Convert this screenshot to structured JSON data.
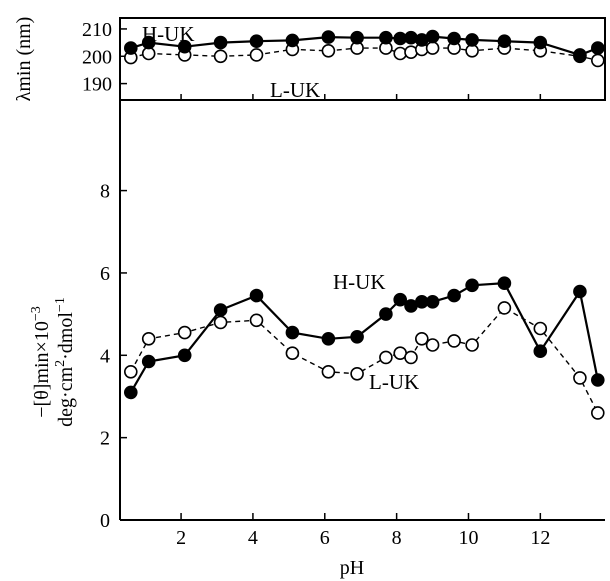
{
  "chart_data": [
    {
      "type": "line",
      "ylabel": "λmin (nm)",
      "ylim": [
        184,
        214
      ],
      "xlim": [
        0.3,
        13.8
      ],
      "yticks": [
        190,
        200,
        210
      ],
      "ytick_labels": [
        "190",
        "200",
        "210"
      ],
      "grid": false,
      "series": [
        {
          "name": "H-UK",
          "marker": "filled-circle",
          "line": "solid",
          "x": [
            0.6,
            1.1,
            2.1,
            3.1,
            4.1,
            5.1,
            6.1,
            6.9,
            7.7,
            8.1,
            8.4,
            8.7,
            9.0,
            9.6,
            10.1,
            11.0,
            12.0,
            13.1,
            13.6
          ],
          "y": [
            203,
            205,
            203.5,
            205,
            205.5,
            205.8,
            207,
            206.8,
            206.8,
            206.5,
            206.8,
            206,
            207.2,
            206.5,
            206,
            205.5,
            205,
            200.5,
            203
          ]
        },
        {
          "name": "L-UK",
          "marker": "open-circle",
          "line": "dashed",
          "x": [
            0.6,
            1.1,
            2.1,
            3.1,
            4.1,
            5.1,
            6.1,
            6.9,
            7.7,
            8.1,
            8.4,
            8.7,
            9.0,
            9.6,
            10.1,
            11.0,
            12.0,
            13.1,
            13.6
          ],
          "y": [
            199.5,
            201,
            200.5,
            200,
            200.5,
            202.5,
            202,
            203,
            203,
            201,
            201.5,
            202.5,
            203,
            203,
            202,
            203,
            202,
            200,
            198.5
          ]
        }
      ]
    },
    {
      "type": "line",
      "xlabel": "pH",
      "ylabel_line1": "−[θ]min×10",
      "ylabel_line1_sup": "−3",
      "ylabel_line2": "deg·cm",
      "ylabel_line2_sup": "2",
      "ylabel_line2b": "·dmol",
      "ylabel_line2b_sup": "−1",
      "xlim": [
        0.3,
        13.8
      ],
      "ylim": [
        0,
        10.2
      ],
      "xticks": [
        2,
        4,
        6,
        8,
        10,
        12
      ],
      "xtick_labels": [
        "2",
        "4",
        "6",
        "8",
        "10",
        "12"
      ],
      "yticks": [
        0,
        2,
        4,
        6,
        8
      ],
      "ytick_labels": [
        "0",
        "2",
        "4",
        "6",
        "8"
      ],
      "grid": false,
      "series": [
        {
          "name": "H-UK",
          "marker": "filled-circle",
          "line": "solid",
          "x": [
            0.6,
            1.1,
            2.1,
            3.1,
            4.1,
            5.1,
            6.1,
            6.9,
            7.7,
            8.1,
            8.4,
            8.7,
            9.0,
            9.6,
            10.1,
            11.0,
            12.0,
            13.1,
            13.6
          ],
          "y": [
            3.1,
            3.85,
            4.0,
            5.1,
            5.45,
            4.55,
            4.4,
            4.45,
            5.0,
            5.35,
            5.2,
            5.3,
            5.3,
            5.45,
            5.7,
            5.75,
            4.1,
            5.55,
            3.4
          ]
        },
        {
          "name": "L-UK",
          "marker": "open-circle",
          "line": "dashed",
          "x": [
            0.6,
            1.1,
            2.1,
            3.1,
            4.1,
            5.1,
            6.1,
            6.9,
            7.7,
            8.1,
            8.4,
            8.7,
            9.0,
            9.6,
            10.1,
            11.0,
            12.0,
            13.1,
            13.6
          ],
          "y": [
            3.6,
            4.4,
            4.55,
            4.8,
            4.85,
            4.05,
            3.6,
            3.55,
            3.95,
            4.05,
            3.95,
            4.4,
            4.25,
            4.35,
            4.25,
            5.15,
            4.65,
            3.45,
            2.6
          ]
        }
      ]
    }
  ]
}
